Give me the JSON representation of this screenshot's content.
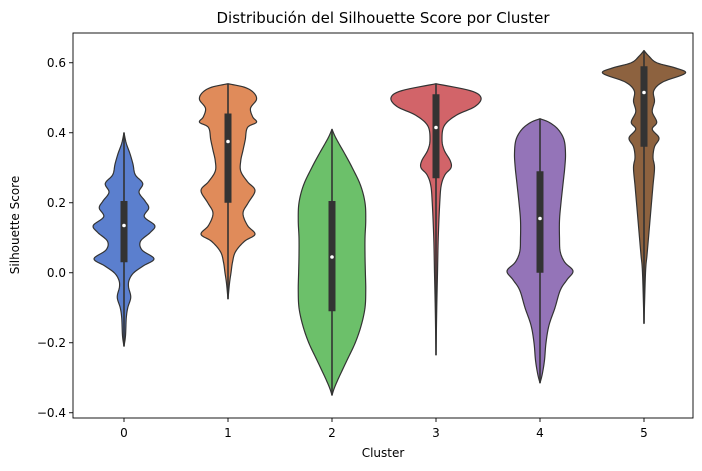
{
  "chart_data": {
    "type": "violin",
    "title": "Distribución del Silhouette Score por Cluster",
    "xlabel": "Cluster",
    "ylabel": "Silhouette Score",
    "ylim": [
      -0.415,
      0.685
    ],
    "yticks": [
      -0.4,
      -0.2,
      0.0,
      0.2,
      0.4,
      0.6
    ],
    "ytick_labels": [
      "−0.4",
      "−0.2",
      "0.0",
      "0.2",
      "0.4",
      "0.6"
    ],
    "categories": [
      "0",
      "1",
      "2",
      "3",
      "4",
      "5"
    ],
    "grid": false,
    "legend": "none",
    "series": [
      {
        "category": "0",
        "color": "#5b7fce",
        "min": -0.21,
        "q1": 0.03,
        "median": 0.135,
        "q3": 0.205,
        "max": 0.4,
        "profile": [
          [
            -0.21,
            0.0
          ],
          [
            -0.18,
            0.02
          ],
          [
            -0.13,
            0.03
          ],
          [
            -0.1,
            0.05
          ],
          [
            -0.07,
            0.09
          ],
          [
            -0.04,
            0.06
          ],
          [
            -0.02,
            0.07
          ],
          [
            0.0,
            0.13
          ],
          [
            0.02,
            0.26
          ],
          [
            0.04,
            0.4
          ],
          [
            0.065,
            0.24
          ],
          [
            0.09,
            0.22
          ],
          [
            0.115,
            0.35
          ],
          [
            0.135,
            0.41
          ],
          [
            0.16,
            0.27
          ],
          [
            0.185,
            0.33
          ],
          [
            0.205,
            0.28
          ],
          [
            0.23,
            0.2
          ],
          [
            0.255,
            0.25
          ],
          [
            0.28,
            0.15
          ],
          [
            0.31,
            0.12
          ],
          [
            0.34,
            0.08
          ],
          [
            0.37,
            0.03
          ],
          [
            0.4,
            0.0
          ]
        ]
      },
      {
        "category": "1",
        "color": "#e08b5a",
        "min": -0.075,
        "q1": 0.2,
        "median": 0.375,
        "q3": 0.455,
        "max": 0.54,
        "profile": [
          [
            -0.075,
            0.0
          ],
          [
            -0.03,
            0.02
          ],
          [
            0.0,
            0.04
          ],
          [
            0.03,
            0.06
          ],
          [
            0.06,
            0.1
          ],
          [
            0.09,
            0.22
          ],
          [
            0.11,
            0.36
          ],
          [
            0.135,
            0.26
          ],
          [
            0.17,
            0.2
          ],
          [
            0.2,
            0.27
          ],
          [
            0.235,
            0.36
          ],
          [
            0.26,
            0.26
          ],
          [
            0.29,
            0.17
          ],
          [
            0.32,
            0.17
          ],
          [
            0.35,
            0.2
          ],
          [
            0.38,
            0.23
          ],
          [
            0.415,
            0.26
          ],
          [
            0.43,
            0.38
          ],
          [
            0.445,
            0.33
          ],
          [
            0.47,
            0.3
          ],
          [
            0.495,
            0.38
          ],
          [
            0.515,
            0.34
          ],
          [
            0.53,
            0.22
          ],
          [
            0.54,
            0.0
          ]
        ]
      },
      {
        "category": "2",
        "color": "#6cc06a",
        "min": -0.35,
        "q1": -0.11,
        "median": 0.045,
        "q3": 0.205,
        "max": 0.41,
        "profile": [
          [
            -0.35,
            0.0
          ],
          [
            -0.33,
            0.03
          ],
          [
            -0.3,
            0.09
          ],
          [
            -0.25,
            0.2
          ],
          [
            -0.2,
            0.31
          ],
          [
            -0.15,
            0.39
          ],
          [
            -0.1,
            0.44
          ],
          [
            -0.05,
            0.45
          ],
          [
            0.0,
            0.445
          ],
          [
            0.05,
            0.44
          ],
          [
            0.1,
            0.44
          ],
          [
            0.15,
            0.45
          ],
          [
            0.2,
            0.44
          ],
          [
            0.25,
            0.38
          ],
          [
            0.3,
            0.27
          ],
          [
            0.34,
            0.17
          ],
          [
            0.37,
            0.09
          ],
          [
            0.39,
            0.04
          ],
          [
            0.41,
            0.0
          ]
        ]
      },
      {
        "category": "3",
        "color": "#d26469",
        "min": -0.235,
        "q1": 0.27,
        "median": 0.415,
        "q3": 0.51,
        "max": 0.54,
        "profile": [
          [
            -0.235,
            0.0
          ],
          [
            -0.1,
            0.01
          ],
          [
            0.0,
            0.02
          ],
          [
            0.1,
            0.03
          ],
          [
            0.2,
            0.05
          ],
          [
            0.25,
            0.07
          ],
          [
            0.28,
            0.12
          ],
          [
            0.3,
            0.2
          ],
          [
            0.32,
            0.19
          ],
          [
            0.35,
            0.11
          ],
          [
            0.38,
            0.08
          ],
          [
            0.42,
            0.11
          ],
          [
            0.45,
            0.27
          ],
          [
            0.475,
            0.52
          ],
          [
            0.5,
            0.6
          ],
          [
            0.52,
            0.46
          ],
          [
            0.54,
            0.0
          ]
        ]
      },
      {
        "category": "4",
        "color": "#9474b8",
        "min": -0.315,
        "q1": 0.0,
        "median": 0.155,
        "q3": 0.29,
        "max": 0.44,
        "profile": [
          [
            -0.315,
            0.0
          ],
          [
            -0.29,
            0.03
          ],
          [
            -0.25,
            0.06
          ],
          [
            -0.2,
            0.08
          ],
          [
            -0.15,
            0.12
          ],
          [
            -0.1,
            0.2
          ],
          [
            -0.05,
            0.27
          ],
          [
            -0.02,
            0.36
          ],
          [
            0.005,
            0.44
          ],
          [
            0.03,
            0.33
          ],
          [
            0.06,
            0.27
          ],
          [
            0.1,
            0.26
          ],
          [
            0.15,
            0.26
          ],
          [
            0.2,
            0.28
          ],
          [
            0.26,
            0.31
          ],
          [
            0.3,
            0.33
          ],
          [
            0.34,
            0.34
          ],
          [
            0.38,
            0.32
          ],
          [
            0.41,
            0.24
          ],
          [
            0.43,
            0.12
          ],
          [
            0.44,
            0.0
          ]
        ]
      },
      {
        "category": "5",
        "color": "#8d623f",
        "min": -0.145,
        "q1": 0.36,
        "median": 0.515,
        "q3": 0.59,
        "max": 0.635,
        "profile": [
          [
            -0.145,
            0.0
          ],
          [
            0.0,
            0.02
          ],
          [
            0.05,
            0.04
          ],
          [
            0.1,
            0.06
          ],
          [
            0.15,
            0.08
          ],
          [
            0.2,
            0.1
          ],
          [
            0.25,
            0.12
          ],
          [
            0.3,
            0.14
          ],
          [
            0.33,
            0.12
          ],
          [
            0.36,
            0.14
          ],
          [
            0.385,
            0.2
          ],
          [
            0.41,
            0.11
          ],
          [
            0.43,
            0.17
          ],
          [
            0.46,
            0.11
          ],
          [
            0.49,
            0.14
          ],
          [
            0.52,
            0.13
          ],
          [
            0.545,
            0.25
          ],
          [
            0.57,
            0.55
          ],
          [
            0.585,
            0.42
          ],
          [
            0.6,
            0.17
          ],
          [
            0.62,
            0.06
          ],
          [
            0.635,
            0.0
          ]
        ]
      }
    ]
  }
}
